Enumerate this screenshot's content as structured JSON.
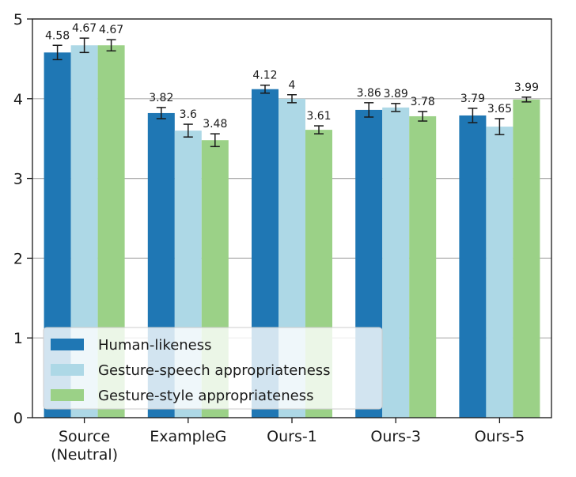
{
  "chart_data": {
    "type": "bar",
    "categories": [
      "Source\n(Neutral)",
      "ExampleG",
      "Ours-1",
      "Ours-3",
      "Ours-5"
    ],
    "series": [
      {
        "name": "Human-likeness",
        "color": "#1f77b4",
        "values": [
          4.58,
          3.82,
          4.12,
          3.86,
          3.79
        ],
        "errors": [
          0.09,
          0.07,
          0.05,
          0.09,
          0.09
        ]
      },
      {
        "name": "Gesture-speech appropriateness",
        "color": "#add8e6",
        "values": [
          4.67,
          3.6,
          4,
          3.89,
          3.65
        ],
        "errors": [
          0.09,
          0.08,
          0.05,
          0.05,
          0.1
        ]
      },
      {
        "name": "Gesture-style appropriateness",
        "color": "#9bd187",
        "values": [
          4.67,
          3.48,
          3.61,
          3.78,
          3.99
        ],
        "errors": [
          0.07,
          0.08,
          0.05,
          0.06,
          0.03
        ]
      }
    ],
    "data_labels": [
      [
        "4.58",
        "4.67",
        "4.67"
      ],
      [
        "3.82",
        "3.6",
        "3.48"
      ],
      [
        "4.12",
        "4",
        "3.61"
      ],
      [
        "3.86",
        "3.89",
        "3.78"
      ],
      [
        "3.79",
        "3.65",
        "3.99"
      ]
    ],
    "y_ticks": [
      "0",
      "1",
      "2",
      "3",
      "4",
      "5"
    ],
    "ylim": [
      0,
      5
    ],
    "grid": "y",
    "legend_position": "lower-left",
    "title": "",
    "xlabel": "",
    "ylabel": ""
  }
}
